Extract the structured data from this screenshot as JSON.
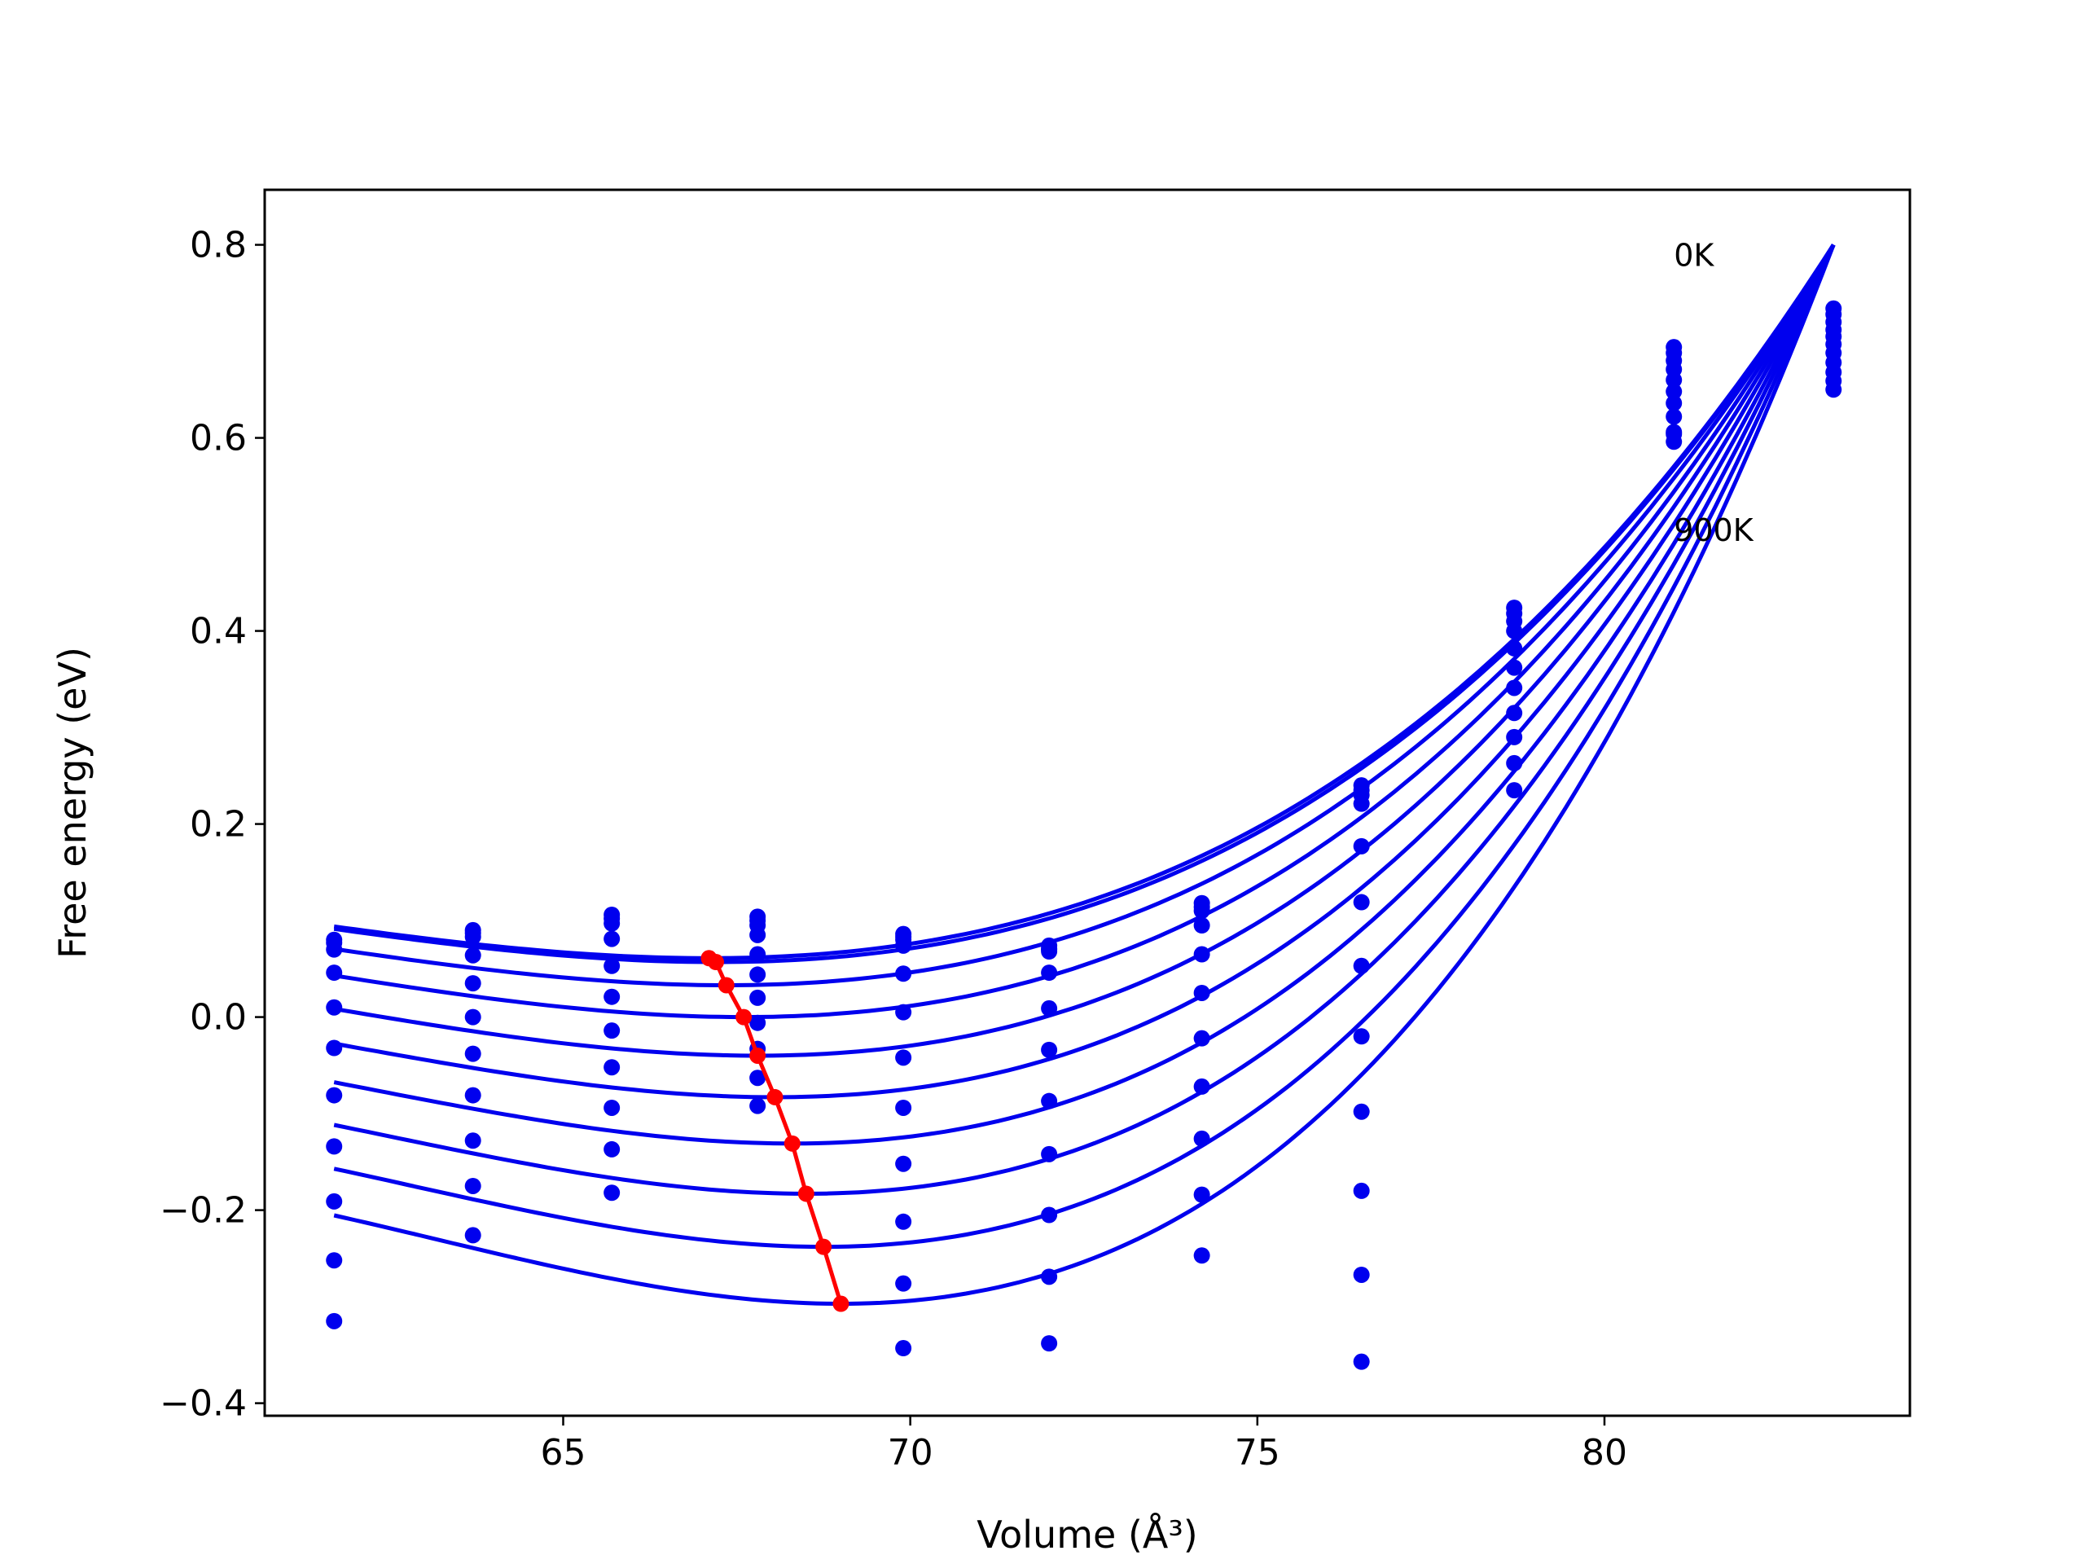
{
  "chart_data": {
    "type": "line",
    "xlabel": "Volume (Å³)",
    "ylabel": "Free energy (eV)",
    "xlim": [
      60.7,
      84.4
    ],
    "ylim": [
      -0.413,
      0.857
    ],
    "xticks": [
      65,
      70,
      75,
      80
    ],
    "yticks": [
      -0.4,
      -0.2,
      0.0,
      0.2,
      0.4,
      0.6,
      0.8
    ],
    "xtick_labels": [
      "65",
      "70",
      "75",
      "80"
    ],
    "ytick_labels": [
      "−0.4",
      "−0.2",
      "0.0",
      "0.2",
      "0.4",
      "0.6",
      "0.8"
    ],
    "grid": false,
    "legend": "none",
    "colors": {
      "fit": "#0000ee",
      "points": "#0000ee",
      "minima": "#ff0000"
    },
    "annotations": [
      {
        "text": "0K",
        "x": 81.0,
        "y": 0.79
      },
      {
        "text": "900K",
        "x": 81.0,
        "y": 0.505
      }
    ],
    "volumes": [
      61.7,
      63.7,
      65.7,
      67.8,
      69.9,
      72.0,
      74.2,
      76.5,
      78.7,
      81.0,
      83.3
    ],
    "series": [
      {
        "values": [
          0.08,
          0.09,
          0.106,
          0.104,
          0.086,
          0.074,
          0.118,
          0.24,
          0.424,
          0.694,
          0.734
        ]
      },
      {
        "values": [
          0.077,
          0.087,
          0.102,
          0.1,
          0.083,
          0.071,
          0.114,
          0.235,
          0.418,
          0.688,
          0.728
        ]
      },
      {
        "values": [
          0.07,
          0.083,
          0.097,
          0.095,
          0.08,
          0.068,
          0.11,
          0.23,
          0.41,
          0.68,
          0.72
        ]
      },
      {
        "values": [
          0.046,
          0.064,
          0.081,
          0.085,
          0.074,
          0.07,
          0.095,
          0.221,
          0.4,
          0.671,
          0.712
        ]
      },
      {
        "values": [
          0.01,
          0.035,
          0.053,
          0.065,
          0.045,
          0.046,
          0.065,
          0.177,
          0.382,
          0.66,
          0.705
        ]
      },
      {
        "values": [
          -0.032,
          0.0,
          0.021,
          0.044,
          0.005,
          0.009,
          0.025,
          0.119,
          0.362,
          0.648,
          0.697
        ]
      },
      {
        "values": [
          -0.081,
          -0.038,
          -0.014,
          0.02,
          -0.042,
          -0.034,
          -0.022,
          0.053,
          0.341,
          0.636,
          0.688
        ]
      },
      {
        "values": [
          -0.134,
          -0.081,
          -0.052,
          -0.006,
          -0.094,
          -0.087,
          -0.072,
          -0.02,
          0.315,
          0.622,
          0.678
        ]
      },
      {
        "values": [
          -0.191,
          -0.128,
          -0.094,
          -0.033,
          -0.152,
          -0.142,
          -0.126,
          -0.098,
          0.29,
          0.606,
          0.668
        ]
      },
      {
        "values": [
          -0.252,
          -0.175,
          -0.137,
          -0.063,
          -0.212,
          -0.205,
          -0.184,
          -0.18,
          0.263,
          0.596,
          0.659
        ]
      },
      {
        "values": [
          -0.315,
          -0.226,
          -0.182,
          -0.092,
          -0.276,
          -0.269,
          -0.247,
          -0.267,
          0.235,
          0.604,
          0.65
        ]
      }
    ],
    "extra_points": [
      {
        "x": 69.9,
        "y": -0.343
      },
      {
        "x": 72.0,
        "y": -0.338
      },
      {
        "x": 76.5,
        "y": -0.357
      }
    ],
    "fit_curves": [
      {
        "x0": 61.7,
        "x1": 83.3,
        "min_x": 67.1,
        "min_y": 0.061
      },
      {
        "x0": 61.7,
        "x1": 83.3,
        "min_x": 67.2,
        "min_y": 0.057
      },
      {
        "x0": 61.7,
        "x1": 83.3,
        "min_x": 67.35,
        "min_y": 0.033
      },
      {
        "x0": 61.7,
        "x1": 83.3,
        "min_x": 67.6,
        "min_y": 0.0
      },
      {
        "x0": 61.7,
        "x1": 83.3,
        "min_x": 67.8,
        "min_y": -0.04
      },
      {
        "x0": 61.7,
        "x1": 83.3,
        "min_x": 68.05,
        "min_y": -0.083
      },
      {
        "x0": 61.7,
        "x1": 83.3,
        "min_x": 68.3,
        "min_y": -0.131
      },
      {
        "x0": 61.7,
        "x1": 83.3,
        "min_x": 68.5,
        "min_y": -0.183
      },
      {
        "x0": 61.7,
        "x1": 83.3,
        "min_x": 68.75,
        "min_y": -0.238
      },
      {
        "x0": 61.7,
        "x1": 83.3,
        "min_x": 69.0,
        "min_y": -0.297
      }
    ],
    "fit_end_y": 0.8,
    "minima_line": {
      "x": [
        67.1,
        67.2,
        67.35,
        67.6,
        67.8,
        68.05,
        68.3,
        68.5,
        68.75,
        69.0
      ],
      "y": [
        0.061,
        0.057,
        0.033,
        0.0,
        -0.04,
        -0.083,
        -0.131,
        -0.183,
        -0.238,
        -0.297
      ]
    }
  }
}
